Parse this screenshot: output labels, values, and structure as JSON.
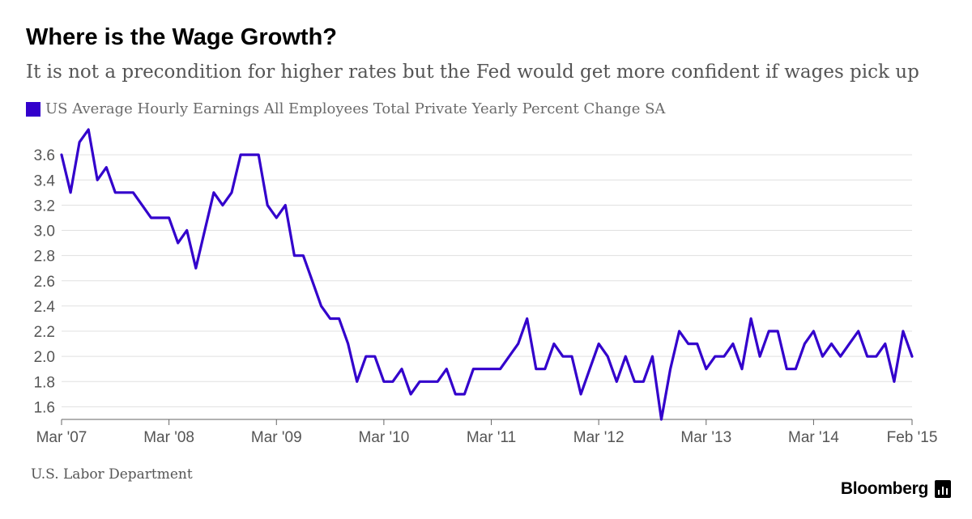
{
  "title": "Where is the Wage Growth?",
  "subtitle": "It is not a precondition for higher rates but the Fed would get more confident if wages pick up",
  "source": "U.S. Labor Department",
  "brand": "Bloomberg",
  "brand_icon": "bloomberg-terminal-icon",
  "colors": {
    "series": "#3300cc",
    "grid": "#e0e0e0",
    "axis_text": "#555555"
  },
  "chart_data": {
    "type": "line",
    "title": "Where is the Wage Growth?",
    "subtitle": "It is not a precondition for higher rates but the Fed would get more confident if wages pick up",
    "xlabel": "",
    "ylabel": "",
    "ylim": [
      1.5,
      3.8
    ],
    "yticks": [
      1.6,
      1.8,
      2.0,
      2.2,
      2.4,
      2.6,
      2.8,
      3.0,
      3.2,
      3.4,
      3.6
    ],
    "ytick_labels": [
      "1.6",
      "1.8",
      "2.0",
      "2.2",
      "2.4",
      "2.6",
      "2.8",
      "3.0",
      "3.2",
      "3.4",
      "3.6"
    ],
    "x_start": "Mar '07",
    "x_end": "Feb '15",
    "xticks": [
      {
        "index": 0,
        "label": "Mar '07"
      },
      {
        "index": 12,
        "label": "Mar '08"
      },
      {
        "index": 24,
        "label": "Mar '09"
      },
      {
        "index": 36,
        "label": "Mar '10"
      },
      {
        "index": 48,
        "label": "Mar '11"
      },
      {
        "index": 60,
        "label": "Mar '12"
      },
      {
        "index": 72,
        "label": "Mar '13"
      },
      {
        "index": 84,
        "label": "Mar '14"
      },
      {
        "index": 95,
        "label": "Feb '15"
      }
    ],
    "legend_position": "top-left",
    "grid": true,
    "series": [
      {
        "name": "US Average Hourly Earnings All Employees Total Private Yearly Percent Change SA",
        "color": "#3300cc",
        "values": [
          3.6,
          3.3,
          3.7,
          3.8,
          3.4,
          3.5,
          3.3,
          3.3,
          3.3,
          3.2,
          3.1,
          3.1,
          3.1,
          2.9,
          3.0,
          2.7,
          3.0,
          3.3,
          3.2,
          3.3,
          3.6,
          3.6,
          3.6,
          3.2,
          3.1,
          3.2,
          2.8,
          2.8,
          2.6,
          2.4,
          2.3,
          2.3,
          2.1,
          1.8,
          2.0,
          2.0,
          1.8,
          1.8,
          1.9,
          1.7,
          1.8,
          1.8,
          1.8,
          1.9,
          1.7,
          1.7,
          1.9,
          1.9,
          1.9,
          1.9,
          2.0,
          2.1,
          2.3,
          1.9,
          1.9,
          2.1,
          2.0,
          2.0,
          1.7,
          1.9,
          2.1,
          2.0,
          1.8,
          2.0,
          1.8,
          1.8,
          2.0,
          1.5,
          1.9,
          2.2,
          2.1,
          2.1,
          1.9,
          2.0,
          2.0,
          2.1,
          1.9,
          2.3,
          2.0,
          2.2,
          2.2,
          1.9,
          1.9,
          2.1,
          2.2,
          2.0,
          2.1,
          2.0,
          2.1,
          2.2,
          2.0,
          2.0,
          2.1,
          1.8,
          2.2,
          2.0
        ]
      }
    ]
  }
}
